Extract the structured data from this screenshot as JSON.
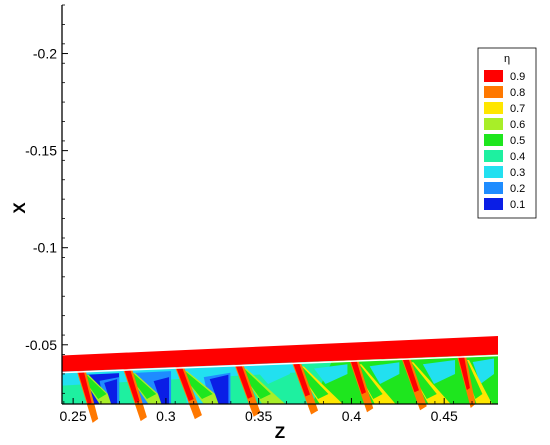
{
  "chart_data": {
    "type": "heatmap",
    "title": "",
    "xlabel": "Z",
    "ylabel": "X",
    "xlim": [
      0.244,
      0.479
    ],
    "ylim": [
      -0.225,
      -0.0195
    ],
    "x_ticks": [
      "0.25",
      "0.3",
      "0.35",
      "0.4",
      "0.45"
    ],
    "x_tick_values": [
      0.25,
      0.3,
      0.35,
      0.4,
      0.45
    ],
    "y_ticks": [
      "-0.2",
      "-0.15",
      "-0.1",
      "-0.05"
    ],
    "y_tick_values": [
      -0.2,
      -0.15,
      -0.1,
      -0.05
    ],
    "grid": false,
    "legend": {
      "title": "η",
      "placement": "right",
      "levels": [
        {
          "label": "0.9",
          "color": "#ff0000"
        },
        {
          "label": "0.8",
          "color": "#ff7800"
        },
        {
          "label": "0.7",
          "color": "#ffe600"
        },
        {
          "label": "0.6",
          "color": "#a8ee28"
        },
        {
          "label": "0.5",
          "color": "#1ee61e"
        },
        {
          "label": "0.4",
          "color": "#1ef0a0"
        },
        {
          "label": "0.3",
          "color": "#22e0f0"
        },
        {
          "label": "0.2",
          "color": "#1e8cff"
        },
        {
          "label": "0.1",
          "color": "#0a1ee6"
        }
      ]
    },
    "film_cooling_band": {
      "z_start": 0.244,
      "z_end": 0.479,
      "x_top_start": -0.0445,
      "x_top_end": -0.0545,
      "x_bottom_start": -0.0362,
      "x_bottom_end": -0.045,
      "value": 0.9
    },
    "cooling_holes_z": [
      0.253,
      0.278,
      0.306,
      0.338,
      0.369,
      0.4,
      0.428,
      0.458
    ]
  }
}
